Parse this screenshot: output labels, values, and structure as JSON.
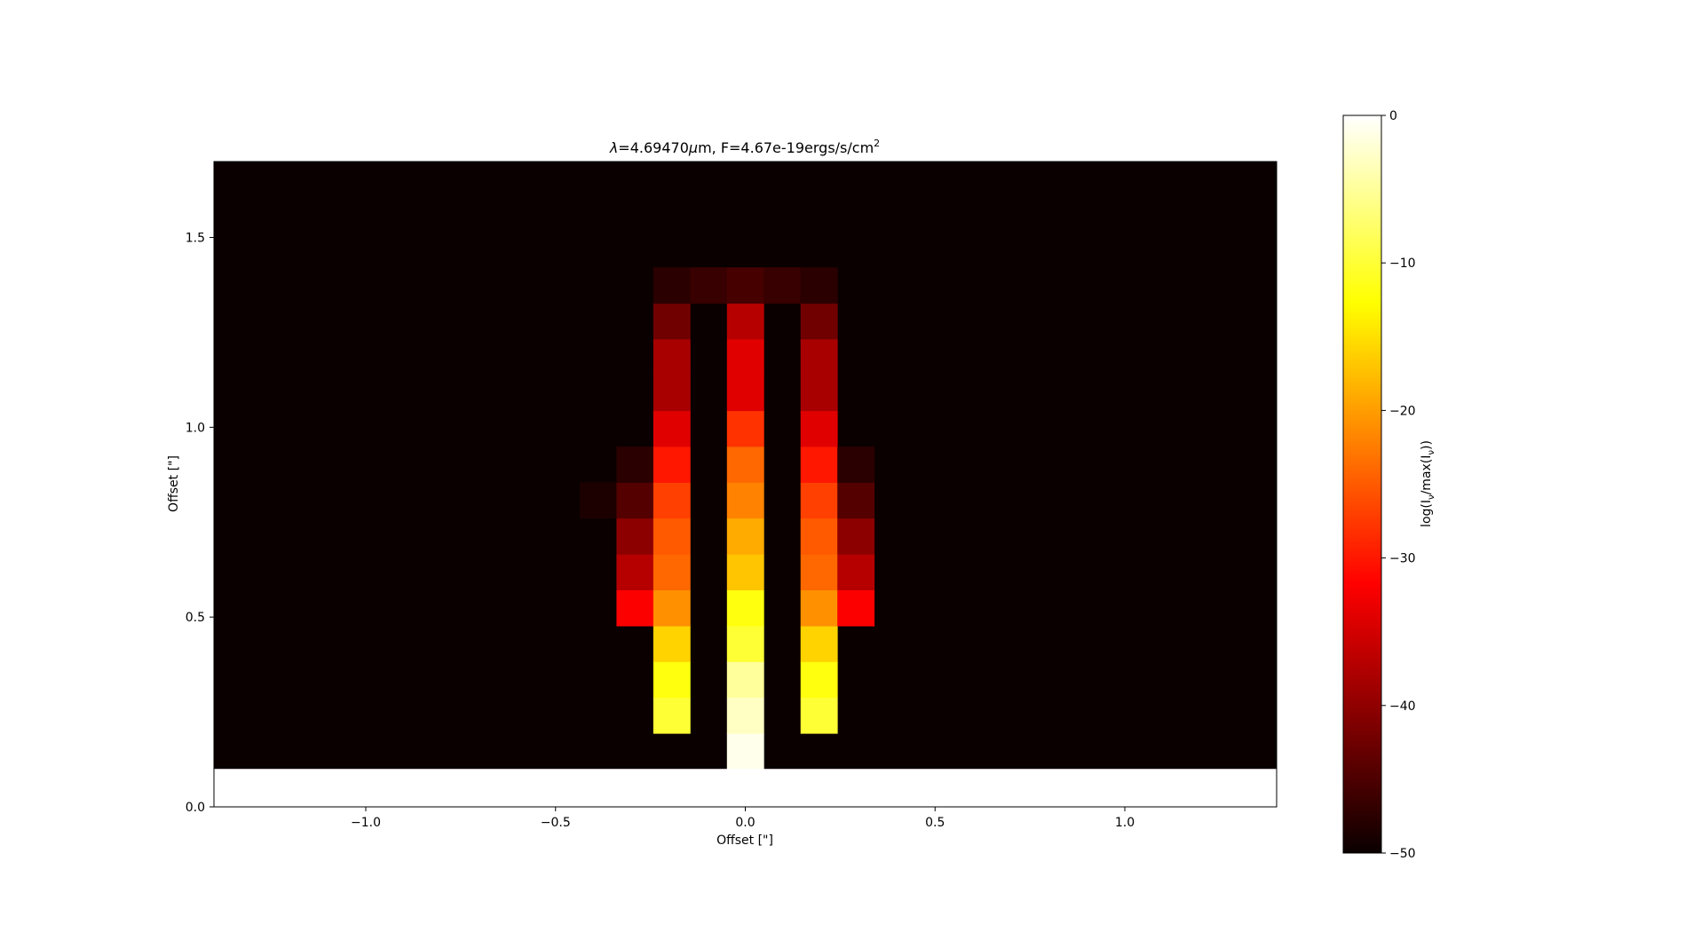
{
  "chart_data": {
    "type": "heatmap",
    "title": "λ=4.69470μm, F=4.67e-19ergs/s/cm²",
    "title_parts": {
      "lambda_symbol": "λ",
      "lambda_value": "=4.69470",
      "mu_symbol": "μ",
      "lambda_unit_rest": "m, F=4.67e-19ergs/s/cm",
      "superscript": "2"
    },
    "xlabel": "Offset [\"]",
    "ylabel": "Offset [\"]",
    "xlim": [
      -1.4,
      1.4
    ],
    "ylim": [
      0.0,
      1.7
    ],
    "x_ticks": [
      {
        "value": -1.0,
        "label": "−1.0"
      },
      {
        "value": -0.5,
        "label": "−0.5"
      },
      {
        "value": 0.0,
        "label": "0.0"
      },
      {
        "value": 0.5,
        "label": "0.5"
      },
      {
        "value": 1.0,
        "label": "1.0"
      }
    ],
    "y_ticks": [
      {
        "value": 0.0,
        "label": "0.0"
      },
      {
        "value": 0.5,
        "label": "0.5"
      },
      {
        "value": 1.0,
        "label": "1.0"
      },
      {
        "value": 1.5,
        "label": "1.5"
      }
    ],
    "colorbar": {
      "label": "log(I_ν/max(I_ν))",
      "label_parts": {
        "prefix": "log(I",
        "sub1": "ν",
        "middle": "/max(I",
        "sub2": "ν",
        "suffix": "))"
      },
      "range": [
        -50,
        0
      ],
      "colormap": "hot",
      "ticks": [
        {
          "value": 0,
          "label": "0"
        },
        {
          "value": -10,
          "label": "−10"
        },
        {
          "value": -20,
          "label": "−20"
        },
        {
          "value": -30,
          "label": "−30"
        },
        {
          "value": -40,
          "label": "−40"
        },
        {
          "value": -50,
          "label": "−50"
        }
      ]
    },
    "grid": false,
    "colors": {
      "background_value_color": "#0a0000",
      "blank_region": "#ffffff"
    },
    "pixel_size": {
      "dx": 0.0968,
      "dy": 0.0944
    },
    "nan_rows_y_below": 0.1,
    "cells": [
      {
        "x": 0.0,
        "y": 0.147,
        "v": -1
      },
      {
        "x": -0.194,
        "y": 0.241,
        "v": -10
      },
      {
        "x": 0.0,
        "y": 0.241,
        "v": -3
      },
      {
        "x": 0.194,
        "y": 0.241,
        "v": -10
      },
      {
        "x": -0.194,
        "y": 0.336,
        "v": -12
      },
      {
        "x": 0.0,
        "y": 0.336,
        "v": -5
      },
      {
        "x": 0.194,
        "y": 0.336,
        "v": -12
      },
      {
        "x": -0.194,
        "y": 0.43,
        "v": -16
      },
      {
        "x": 0.0,
        "y": 0.43,
        "v": -10
      },
      {
        "x": 0.194,
        "y": 0.43,
        "v": -16
      },
      {
        "x": -0.291,
        "y": 0.524,
        "v": -32
      },
      {
        "x": -0.194,
        "y": 0.524,
        "v": -21
      },
      {
        "x": 0.0,
        "y": 0.524,
        "v": -12
      },
      {
        "x": 0.194,
        "y": 0.524,
        "v": -21
      },
      {
        "x": 0.291,
        "y": 0.524,
        "v": -32
      },
      {
        "x": -0.291,
        "y": 0.619,
        "v": -37
      },
      {
        "x": -0.194,
        "y": 0.619,
        "v": -24
      },
      {
        "x": 0.0,
        "y": 0.619,
        "v": -17
      },
      {
        "x": 0.194,
        "y": 0.619,
        "v": -24
      },
      {
        "x": 0.291,
        "y": 0.619,
        "v": -37
      },
      {
        "x": -0.291,
        "y": 0.713,
        "v": -40
      },
      {
        "x": -0.194,
        "y": 0.713,
        "v": -25
      },
      {
        "x": 0.0,
        "y": 0.713,
        "v": -19
      },
      {
        "x": 0.194,
        "y": 0.713,
        "v": -25
      },
      {
        "x": 0.291,
        "y": 0.713,
        "v": -40
      },
      {
        "x": -0.388,
        "y": 0.808,
        "v": -48
      },
      {
        "x": -0.291,
        "y": 0.808,
        "v": -44
      },
      {
        "x": -0.194,
        "y": 0.808,
        "v": -27
      },
      {
        "x": 0.0,
        "y": 0.808,
        "v": -22
      },
      {
        "x": 0.194,
        "y": 0.808,
        "v": -27
      },
      {
        "x": 0.291,
        "y": 0.808,
        "v": -44
      },
      {
        "x": -0.291,
        "y": 0.902,
        "v": -47
      },
      {
        "x": -0.194,
        "y": 0.902,
        "v": -30
      },
      {
        "x": 0.0,
        "y": 0.902,
        "v": -24
      },
      {
        "x": 0.194,
        "y": 0.902,
        "v": -30
      },
      {
        "x": 0.291,
        "y": 0.902,
        "v": -47
      },
      {
        "x": -0.194,
        "y": 0.997,
        "v": -34
      },
      {
        "x": 0.0,
        "y": 0.997,
        "v": -28
      },
      {
        "x": 0.194,
        "y": 0.997,
        "v": -34
      },
      {
        "x": -0.194,
        "y": 1.091,
        "v": -38
      },
      {
        "x": 0.0,
        "y": 1.091,
        "v": -34
      },
      {
        "x": 0.194,
        "y": 1.091,
        "v": -38
      },
      {
        "x": -0.194,
        "y": 1.185,
        "v": -38
      },
      {
        "x": 0.0,
        "y": 1.185,
        "v": -34
      },
      {
        "x": 0.194,
        "y": 1.185,
        "v": -38
      },
      {
        "x": -0.194,
        "y": 1.28,
        "v": -42
      },
      {
        "x": 0.0,
        "y": 1.28,
        "v": -37
      },
      {
        "x": 0.194,
        "y": 1.28,
        "v": -42
      },
      {
        "x": -0.194,
        "y": 1.374,
        "v": -47
      },
      {
        "x": -0.097,
        "y": 1.374,
        "v": -46
      },
      {
        "x": 0.0,
        "y": 1.374,
        "v": -45
      },
      {
        "x": 0.097,
        "y": 1.374,
        "v": -46
      },
      {
        "x": 0.194,
        "y": 1.374,
        "v": -47
      }
    ]
  }
}
